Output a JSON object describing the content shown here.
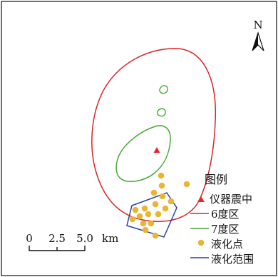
{
  "north": {
    "label": "N"
  },
  "legend": {
    "title": "图例",
    "items": [
      {
        "label": "仪器震中",
        "symbol": "triangle",
        "color": "#e8262b"
      },
      {
        "label": "6度区",
        "symbol": "line",
        "color": "#d8252b"
      },
      {
        "label": "7度区",
        "symbol": "line",
        "color": "#4aa83a"
      },
      {
        "label": "液化点",
        "symbol": "dot",
        "color": "#e9b634"
      },
      {
        "label": "液化范围",
        "symbol": "line",
        "color": "#2244a0"
      }
    ]
  },
  "scale_bar": {
    "ticks": [
      "0",
      "2.5",
      "5.0"
    ],
    "unit": "km"
  },
  "colors": {
    "frame": "#111111",
    "background": "#ffffff"
  }
}
